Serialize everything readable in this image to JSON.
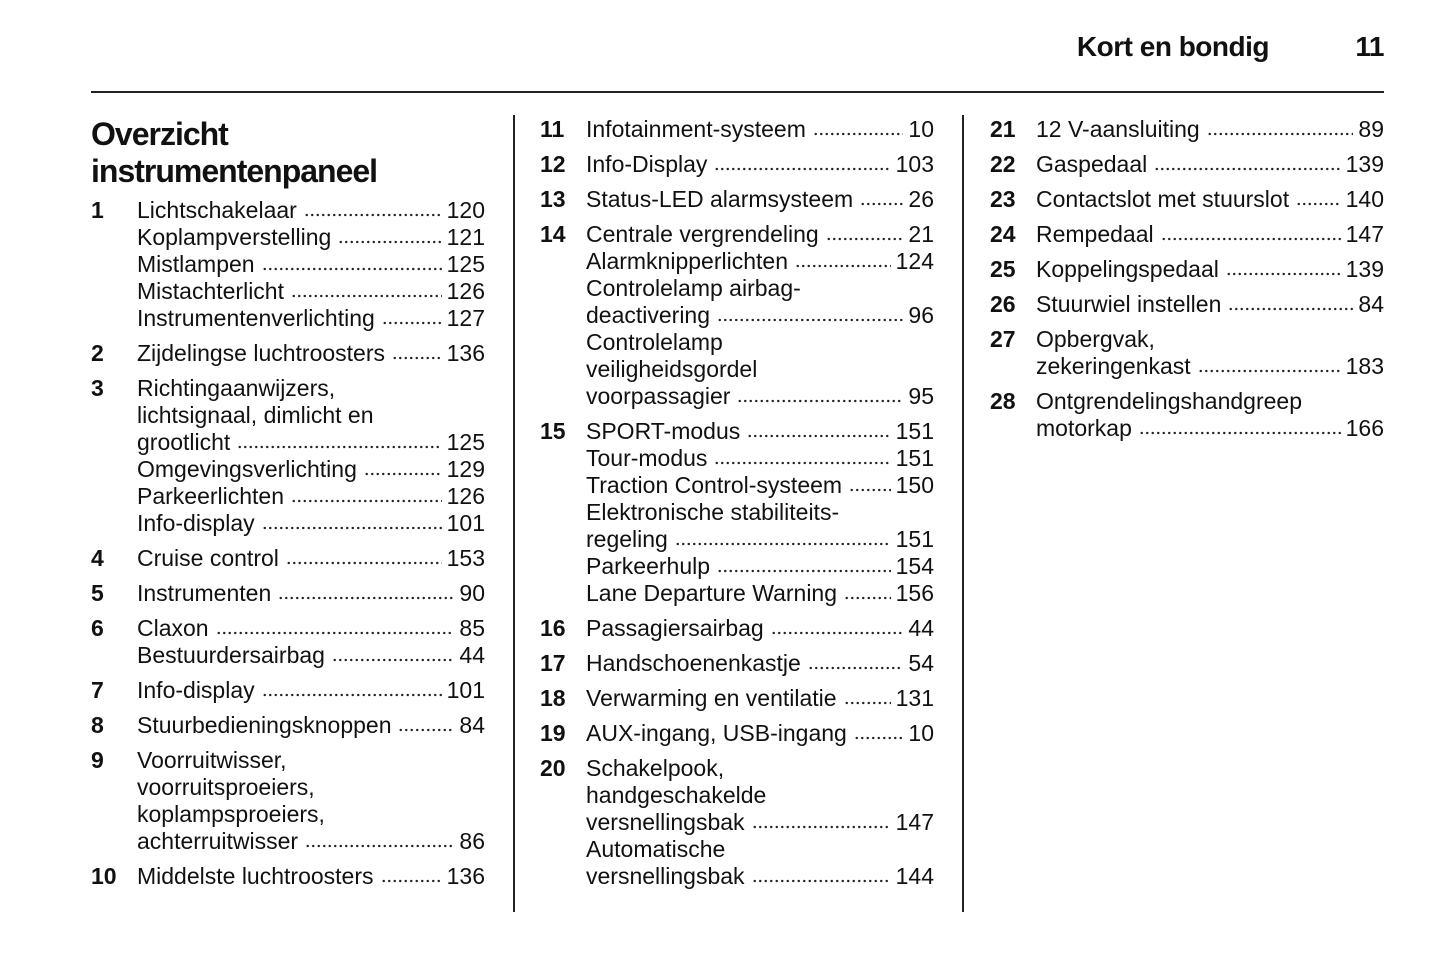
{
  "header": {
    "section": "Kort en bondig",
    "page": 11
  },
  "title": [
    "Overzicht",
    "instrumentenpaneel"
  ],
  "columns": [
    {
      "entries": [
        {
          "number": 1,
          "items": [
            {
              "lines": [
                "Lichtschakelaar"
              ],
              "page": 120
            },
            {
              "lines": [
                "Koplampverstelling"
              ],
              "page": 121
            },
            {
              "lines": [
                "Mistlampen"
              ],
              "page": 125
            },
            {
              "lines": [
                "Mistachterlicht"
              ],
              "page": 126
            },
            {
              "lines": [
                "Instrumentenverlichting"
              ],
              "page": 127
            }
          ]
        },
        {
          "number": 2,
          "items": [
            {
              "lines": [
                "Zijdelingse luchtroosters"
              ],
              "page": 136
            }
          ]
        },
        {
          "number": 3,
          "items": [
            {
              "lines": [
                "Richtingaanwijzers,",
                "lichtsignaal, dimlicht en",
                "grootlicht"
              ],
              "page": 125
            },
            {
              "lines": [
                "Omgevingsverlichting"
              ],
              "page": 129
            },
            {
              "lines": [
                "Parkeerlichten"
              ],
              "page": 126
            },
            {
              "lines": [
                "Info-display"
              ],
              "page": 101
            }
          ]
        },
        {
          "number": 4,
          "items": [
            {
              "lines": [
                "Cruise control"
              ],
              "page": 153
            }
          ]
        },
        {
          "number": 5,
          "items": [
            {
              "lines": [
                "Instrumenten"
              ],
              "page": 90
            }
          ]
        },
        {
          "number": 6,
          "items": [
            {
              "lines": [
                "Claxon"
              ],
              "page": 85
            },
            {
              "lines": [
                "Bestuurdersairbag"
              ],
              "page": 44
            }
          ]
        },
        {
          "number": 7,
          "items": [
            {
              "lines": [
                "Info-display"
              ],
              "page": 101
            }
          ]
        },
        {
          "number": 8,
          "items": [
            {
              "lines": [
                "Stuurbedieningsknoppen"
              ],
              "page": 84
            }
          ]
        },
        {
          "number": 9,
          "items": [
            {
              "lines": [
                "Voorruitwisser,",
                "voorruitsproeiers,",
                "koplampsproeiers,",
                "achterruitwisser"
              ],
              "page": 86
            }
          ]
        },
        {
          "number": 10,
          "items": [
            {
              "lines": [
                "Middelste luchtroosters"
              ],
              "page": 136
            }
          ]
        }
      ]
    },
    {
      "entries": [
        {
          "number": 11,
          "items": [
            {
              "lines": [
                "Infotainment-systeem"
              ],
              "page": 10
            }
          ]
        },
        {
          "number": 12,
          "items": [
            {
              "lines": [
                "Info-Display"
              ],
              "page": 103
            }
          ]
        },
        {
          "number": 13,
          "items": [
            {
              "lines": [
                "Status-LED alarmsysteem"
              ],
              "page": 26
            }
          ]
        },
        {
          "number": 14,
          "items": [
            {
              "lines": [
                "Centrale vergrendeling"
              ],
              "page": 21
            },
            {
              "lines": [
                "Alarmknipperlichten"
              ],
              "page": 124
            },
            {
              "lines": [
                "Controlelamp airbag-",
                "deactivering"
              ],
              "page": 96
            },
            {
              "lines": [
                "Controlelamp",
                "veiligheidsgordel",
                "voorpassagier"
              ],
              "page": 95
            }
          ]
        },
        {
          "number": 15,
          "items": [
            {
              "lines": [
                "SPORT-modus"
              ],
              "page": 151
            },
            {
              "lines": [
                "Tour-modus"
              ],
              "page": 151
            },
            {
              "lines": [
                "Traction Control-systeem"
              ],
              "page": 150
            },
            {
              "lines": [
                "Elektronische stabiliteits-",
                "regeling"
              ],
              "page": 151
            },
            {
              "lines": [
                "Parkeerhulp"
              ],
              "page": 154
            },
            {
              "lines": [
                "Lane Departure Warning"
              ],
              "page": 156
            }
          ]
        },
        {
          "number": 16,
          "items": [
            {
              "lines": [
                "Passagiersairbag"
              ],
              "page": 44
            }
          ]
        },
        {
          "number": 17,
          "items": [
            {
              "lines": [
                "Handschoenenkastje"
              ],
              "page": 54
            }
          ]
        },
        {
          "number": 18,
          "items": [
            {
              "lines": [
                "Verwarming en ventilatie"
              ],
              "page": 131
            }
          ]
        },
        {
          "number": 19,
          "items": [
            {
              "lines": [
                "AUX-ingang, USB-ingang"
              ],
              "page": 10
            }
          ]
        },
        {
          "number": 20,
          "items": [
            {
              "lines": [
                "Schakelpook,",
                "handgeschakelde",
                "versnellingsbak"
              ],
              "page": 147
            },
            {
              "lines": [
                "Automatische",
                "versnellingsbak"
              ],
              "page": 144
            }
          ]
        }
      ]
    },
    {
      "entries": [
        {
          "number": 21,
          "items": [
            {
              "lines": [
                "12 V-aansluiting"
              ],
              "page": 89
            }
          ]
        },
        {
          "number": 22,
          "items": [
            {
              "lines": [
                "Gaspedaal"
              ],
              "page": 139
            }
          ]
        },
        {
          "number": 23,
          "items": [
            {
              "lines": [
                "Contactslot met stuurslot"
              ],
              "page": 140
            }
          ]
        },
        {
          "number": 24,
          "items": [
            {
              "lines": [
                "Rempedaal"
              ],
              "page": 147
            }
          ]
        },
        {
          "number": 25,
          "items": [
            {
              "lines": [
                "Koppelingspedaal"
              ],
              "page": 139
            }
          ]
        },
        {
          "number": 26,
          "items": [
            {
              "lines": [
                "Stuurwiel instellen"
              ],
              "page": 84
            }
          ]
        },
        {
          "number": 27,
          "items": [
            {
              "lines": [
                "Opbergvak,",
                "zekeringenkast"
              ],
              "page": 183
            }
          ]
        },
        {
          "number": 28,
          "items": [
            {
              "lines": [
                "Ontgrendelingshandgreep",
                "motorkap"
              ],
              "page": 166
            }
          ]
        }
      ]
    }
  ]
}
